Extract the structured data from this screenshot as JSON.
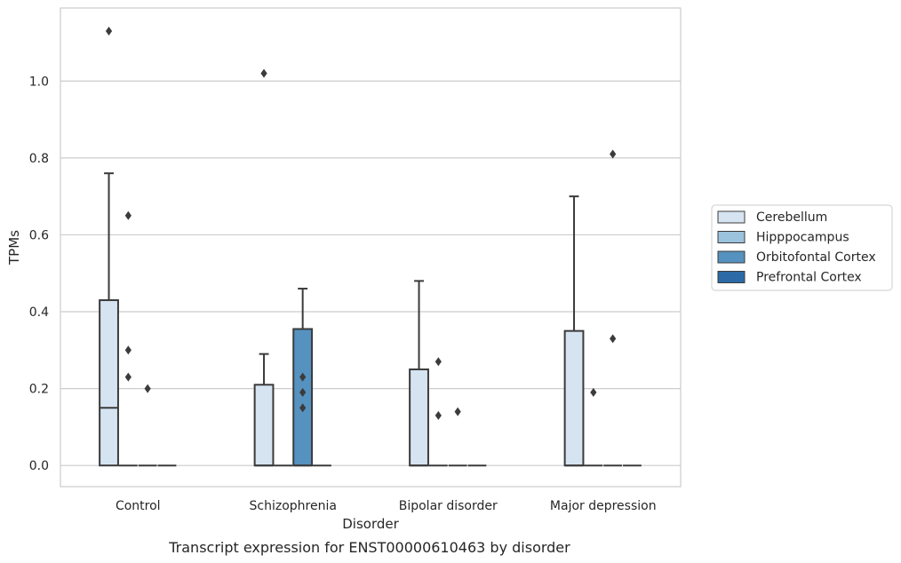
{
  "chart_data": {
    "type": "box",
    "caption": "Transcript expression for ENST00000610463 by disorder",
    "xlabel": "Disorder",
    "ylabel": "TPMs",
    "ylim": [
      -0.055,
      1.19
    ],
    "yticks": [
      "0.0",
      "0.2",
      "0.4",
      "0.6",
      "0.8",
      "1.0"
    ],
    "grid": "horizontal",
    "legend_position": "right",
    "categories": [
      "Control",
      "Schizophrenia",
      "Bipolar disorder",
      "Major depression"
    ],
    "series": [
      {
        "name": "Cerebellum",
        "color": "#d6e4f2",
        "boxes": [
          {
            "category": "Control",
            "q1": 0.0,
            "median": 0.15,
            "q3": 0.43,
            "whisker_low": 0.0,
            "whisker_high": 0.76,
            "outliers": [
              1.13
            ]
          },
          {
            "category": "Schizophrenia",
            "q1": 0.0,
            "median": 0.0,
            "q3": 0.21,
            "whisker_low": 0.0,
            "whisker_high": 0.29,
            "outliers": [
              1.02
            ]
          },
          {
            "category": "Bipolar disorder",
            "q1": 0.0,
            "median": 0.0,
            "q3": 0.25,
            "whisker_low": 0.0,
            "whisker_high": 0.48,
            "outliers": []
          },
          {
            "category": "Major depression",
            "q1": 0.0,
            "median": 0.0,
            "q3": 0.35,
            "whisker_low": 0.0,
            "whisker_high": 0.7,
            "outliers": []
          }
        ]
      },
      {
        "name": "Hipppocampus",
        "color": "#9cc3dd",
        "boxes": [
          {
            "category": "Control",
            "q1": 0.0,
            "median": 0.0,
            "q3": 0.0,
            "whisker_low": 0.0,
            "whisker_high": 0.0,
            "outliers": [
              0.65,
              0.3,
              0.23
            ]
          },
          {
            "category": "Schizophrenia",
            "q1": 0.0,
            "median": 0.0,
            "q3": 0.0,
            "whisker_low": 0.0,
            "whisker_high": 0.0,
            "outliers": []
          },
          {
            "category": "Bipolar disorder",
            "q1": 0.0,
            "median": 0.0,
            "q3": 0.0,
            "whisker_low": 0.0,
            "whisker_high": 0.0,
            "outliers": [
              0.27,
              0.13
            ]
          },
          {
            "category": "Major depression",
            "q1": 0.0,
            "median": 0.0,
            "q3": 0.0,
            "whisker_low": 0.0,
            "whisker_high": 0.0,
            "outliers": [
              0.19
            ]
          }
        ]
      },
      {
        "name": "Orbitofontal Cortex",
        "color": "#5592bf",
        "boxes": [
          {
            "category": "Control",
            "q1": 0.0,
            "median": 0.0,
            "q3": 0.0,
            "whisker_low": 0.0,
            "whisker_high": 0.0,
            "outliers": [
              0.2
            ]
          },
          {
            "category": "Schizophrenia",
            "q1": 0.0,
            "median": 0.0,
            "q3": 0.355,
            "whisker_low": 0.0,
            "whisker_high": 0.46,
            "outliers": [
              0.23,
              0.19,
              0.15
            ]
          },
          {
            "category": "Bipolar disorder",
            "q1": 0.0,
            "median": 0.0,
            "q3": 0.0,
            "whisker_low": 0.0,
            "whisker_high": 0.0,
            "outliers": [
              0.14
            ]
          },
          {
            "category": "Major depression",
            "q1": 0.0,
            "median": 0.0,
            "q3": 0.0,
            "whisker_low": 0.0,
            "whisker_high": 0.0,
            "outliers": [
              0.81,
              0.33
            ]
          }
        ]
      },
      {
        "name": "Prefrontal Cortex",
        "color": "#2b6aa6",
        "boxes": [
          {
            "category": "Control",
            "q1": 0.0,
            "median": 0.0,
            "q3": 0.0,
            "whisker_low": 0.0,
            "whisker_high": 0.0,
            "outliers": []
          },
          {
            "category": "Schizophrenia",
            "q1": 0.0,
            "median": 0.0,
            "q3": 0.0,
            "whisker_low": 0.0,
            "whisker_high": 0.0,
            "outliers": []
          },
          {
            "category": "Bipolar disorder",
            "q1": 0.0,
            "median": 0.0,
            "q3": 0.0,
            "whisker_low": 0.0,
            "whisker_high": 0.0,
            "outliers": []
          },
          {
            "category": "Major depression",
            "q1": 0.0,
            "median": 0.0,
            "q3": 0.0,
            "whisker_low": 0.0,
            "whisker_high": 0.0,
            "outliers": []
          }
        ]
      }
    ],
    "colors": {
      "grid": "#cccccc",
      "frame": "#cccccc",
      "stroke": "#3b3b3b"
    }
  }
}
